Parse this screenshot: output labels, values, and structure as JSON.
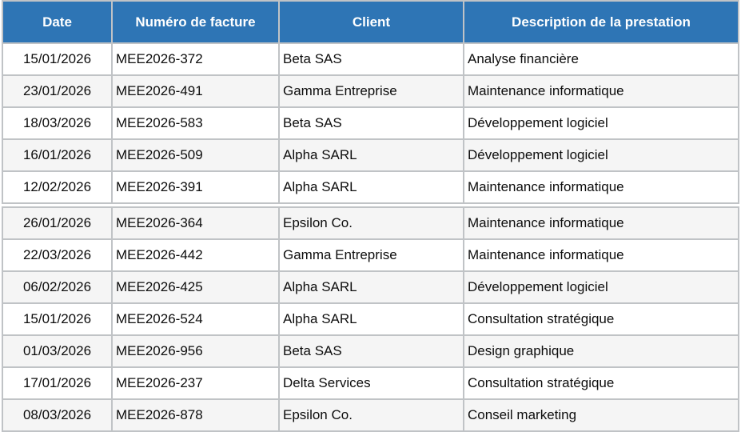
{
  "table": {
    "columns": [
      {
        "label": "Date"
      },
      {
        "label": "Numéro de facture"
      },
      {
        "label": "Client"
      },
      {
        "label": "Description de la prestation"
      }
    ],
    "rows": [
      {
        "date": "15/01/2026",
        "invoice": "MEE2026-372",
        "client": "Beta SAS",
        "description": "Analyse financière"
      },
      {
        "date": "23/01/2026",
        "invoice": "MEE2026-491",
        "client": "Gamma Entreprise",
        "description": "Maintenance informatique"
      },
      {
        "date": "18/03/2026",
        "invoice": "MEE2026-583",
        "client": "Beta SAS",
        "description": "Développement logiciel"
      },
      {
        "date": "16/01/2026",
        "invoice": "MEE2026-509",
        "client": "Alpha SARL",
        "description": "Développement logiciel"
      },
      {
        "date": "12/02/2026",
        "invoice": "MEE2026-391",
        "client": "Alpha SARL",
        "description": "Maintenance informatique"
      },
      {
        "date": "26/01/2026",
        "invoice": "MEE2026-364",
        "client": "Epsilon Co.",
        "description": "Maintenance informatique"
      },
      {
        "date": "22/03/2026",
        "invoice": "MEE2026-442",
        "client": "Gamma Entreprise",
        "description": "Maintenance informatique"
      },
      {
        "date": "06/02/2026",
        "invoice": "MEE2026-425",
        "client": "Alpha SARL",
        "description": "Développement logiciel"
      },
      {
        "date": "15/01/2026",
        "invoice": "MEE2026-524",
        "client": "Alpha SARL",
        "description": "Consultation stratégique"
      },
      {
        "date": "01/03/2026",
        "invoice": "MEE2026-956",
        "client": "Beta SAS",
        "description": "Design graphique"
      },
      {
        "date": "17/01/2026",
        "invoice": "MEE2026-237",
        "client": "Delta Services",
        "description": "Consultation stratégique"
      },
      {
        "date": "08/03/2026",
        "invoice": "MEE2026-878",
        "client": "Epsilon Co.",
        "description": "Conseil marketing"
      }
    ],
    "colors": {
      "header_bg": "#2e75b5",
      "header_text": "#ffffff",
      "row_alt_bg": "#f5f5f5",
      "border": "#c0c3c6"
    }
  }
}
